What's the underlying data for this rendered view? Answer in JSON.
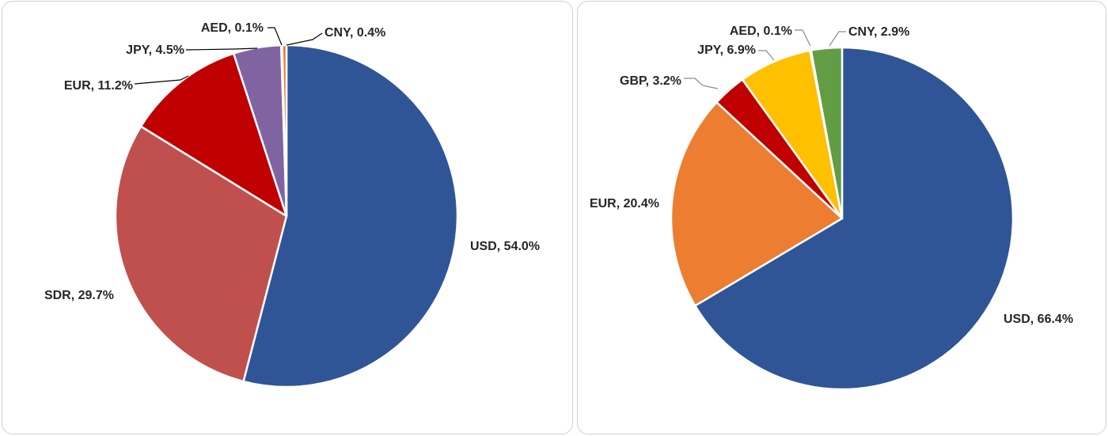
{
  "chart_data": [
    {
      "type": "pie",
      "slices": [
        {
          "label": "USD",
          "value": 54.0,
          "text": "USD, 54.0%",
          "color": "#2F5597"
        },
        {
          "label": "SDR",
          "value": 29.7,
          "text": "SDR, 29.7%",
          "color": "#C0504D"
        },
        {
          "label": "EUR",
          "value": 11.2,
          "text": "EUR, 11.2%",
          "color": "#C00000"
        },
        {
          "label": "JPY",
          "value": 4.5,
          "text": "JPY, 4.5%",
          "color": "#8064A2"
        },
        {
          "label": "AED",
          "value": 0.1,
          "text": "AED, 0.1%",
          "color": "#1F3864"
        },
        {
          "label": "CNY",
          "value": 0.4,
          "text": "CNY, 0.4%",
          "color": "#ED7D31"
        }
      ]
    },
    {
      "type": "pie",
      "slices": [
        {
          "label": "USD",
          "value": 66.4,
          "text": "USD, 66.4%",
          "color": "#2F5597"
        },
        {
          "label": "EUR",
          "value": 20.4,
          "text": "EUR, 20.4%",
          "color": "#ED7D31"
        },
        {
          "label": "GBP",
          "value": 3.2,
          "text": "GBP, 3.2%",
          "color": "#C00000"
        },
        {
          "label": "JPY",
          "value": 6.9,
          "text": "JPY, 6.9%",
          "color": "#FFC000"
        },
        {
          "label": "AED",
          "value": 0.1,
          "text": "AED, 0.1%",
          "color": "#A5A5A5"
        },
        {
          "label": "CNY",
          "value": 2.9,
          "text": "CNY, 2.9%",
          "color": "#629C44"
        }
      ]
    }
  ]
}
